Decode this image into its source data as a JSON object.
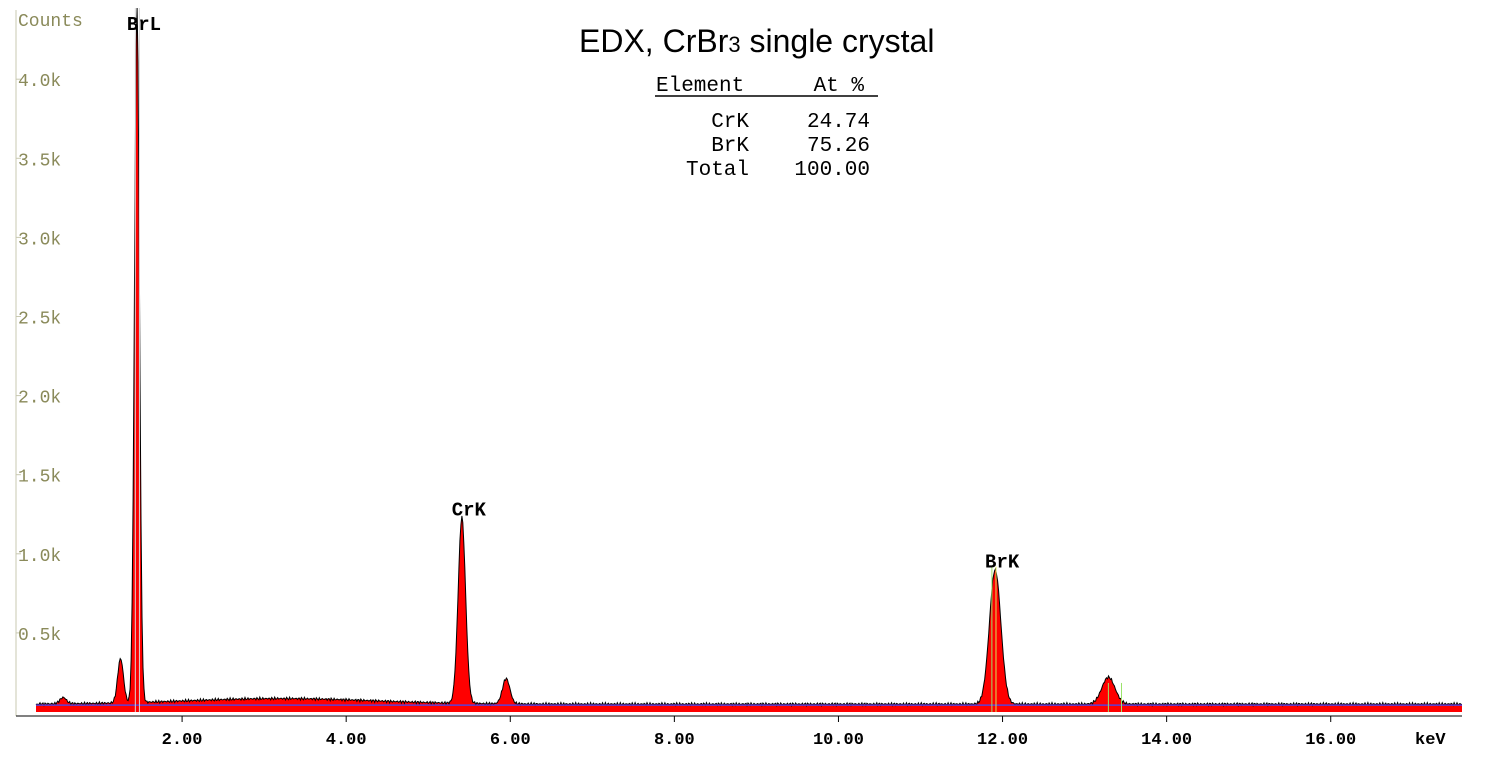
{
  "chart_data": {
    "type": "area",
    "title": "EDX, CrBr",
    "title_sub": "3",
    "title_suffix": " single crystal",
    "ylabel": "Counts",
    "xlabel": "keV",
    "xlim": [
      0.0,
      17.6
    ],
    "ylim": [
      0,
      4.45
    ],
    "y_unit_note": "k",
    "y_ticks": [
      {
        "value": 0.5,
        "label": "0.5k"
      },
      {
        "value": 1.0,
        "label": "1.0k"
      },
      {
        "value": 1.5,
        "label": "1.5k"
      },
      {
        "value": 2.0,
        "label": "2.0k"
      },
      {
        "value": 2.5,
        "label": "2.5k"
      },
      {
        "value": 3.0,
        "label": "3.0k"
      },
      {
        "value": 3.5,
        "label": "3.5k"
      },
      {
        "value": 4.0,
        "label": "4.0k"
      }
    ],
    "x_ticks": [
      {
        "value": 2,
        "label": "2.00"
      },
      {
        "value": 4,
        "label": "4.00"
      },
      {
        "value": 6,
        "label": "6.00"
      },
      {
        "value": 8,
        "label": "8.00"
      },
      {
        "value": 10,
        "label": "10.00"
      },
      {
        "value": 12,
        "label": "12.00"
      },
      {
        "value": 14,
        "label": "14.00"
      },
      {
        "value": 16,
        "label": "16.00"
      }
    ],
    "background_counts": 0.05,
    "peaks": [
      {
        "center": 0.55,
        "height": 0.04,
        "width": 0.04
      },
      {
        "center": 1.25,
        "height": 0.28,
        "width": 0.035
      },
      {
        "center": 1.45,
        "height": 4.45,
        "width": 0.03
      },
      {
        "center": 5.41,
        "height": 1.18,
        "width": 0.045
      },
      {
        "center": 5.95,
        "height": 0.16,
        "width": 0.045
      },
      {
        "center": 11.91,
        "height": 0.85,
        "width": 0.07
      },
      {
        "center": 13.29,
        "height": 0.17,
        "width": 0.08
      }
    ],
    "peak_labels": [
      {
        "label": "BrL",
        "x": 1.45,
        "y": 4.45
      },
      {
        "label": "CrK",
        "x": 5.41,
        "y": 1.18
      },
      {
        "label": "BrK",
        "x": 11.91,
        "y": 0.85
      }
    ],
    "marker_lines": [
      {
        "x": 1.43,
        "color": "#d8d8d8"
      },
      {
        "x": 1.48,
        "color": "#d8d8d8"
      },
      {
        "x": 11.87,
        "color": "#9be36b"
      },
      {
        "x": 11.92,
        "color": "#d7e35a"
      },
      {
        "x": 13.29,
        "color": "#9be36b"
      },
      {
        "x": 13.45,
        "color": "#9be36b"
      }
    ],
    "grid": false,
    "colors": {
      "fill": "#ff0000",
      "outline": "#000000",
      "baseline": "#5b3fd8",
      "axis_text": "#8a8a5a",
      "label_text": "#000000"
    },
    "table": {
      "headers": [
        "Element",
        "At %"
      ],
      "rows": [
        [
          "CrK",
          "24.74"
        ],
        [
          "BrK",
          "75.26"
        ],
        [
          "Total",
          "100.00"
        ]
      ]
    }
  }
}
